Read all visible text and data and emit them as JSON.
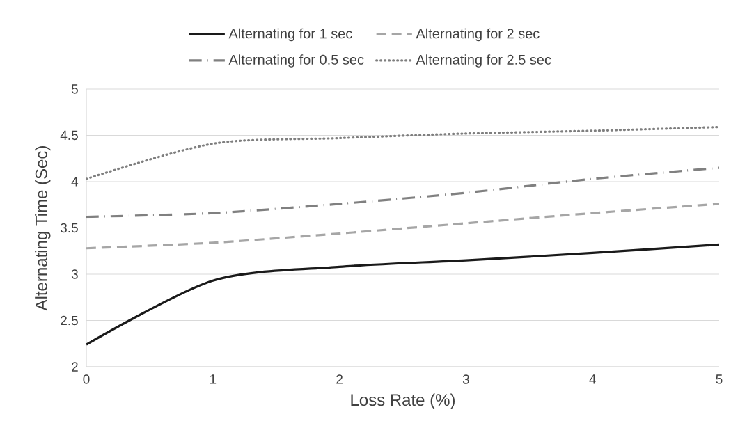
{
  "chart_data": {
    "type": "line",
    "xlabel": "Loss Rate (%)",
    "ylabel": "Alternating Time (Sec)",
    "x": [
      0,
      1,
      2,
      3,
      4,
      5
    ],
    "series": [
      {
        "name": "Alternating for 1 sec",
        "color": "#1a1a1a",
        "line_style": "solid",
        "values": [
          2.24,
          2.93,
          3.08,
          3.15,
          3.23,
          3.32
        ]
      },
      {
        "name": "Alternating for 2 sec",
        "color": "#a6a6a6",
        "line_style": "dashed",
        "values": [
          3.28,
          3.34,
          3.44,
          3.55,
          3.66,
          3.76
        ]
      },
      {
        "name": "Alternating for 0.5 sec",
        "color": "#808080",
        "line_style": "dashdot",
        "values": [
          3.62,
          3.66,
          3.76,
          3.88,
          4.03,
          4.15
        ]
      },
      {
        "name": "Alternating for 2.5 sec",
        "color": "#7f7f7f",
        "line_style": "dotted",
        "values": [
          4.03,
          4.41,
          4.47,
          4.52,
          4.55,
          4.59
        ]
      }
    ],
    "xlim": [
      0,
      5
    ],
    "xticks": [
      0,
      1,
      2,
      3,
      4,
      5
    ],
    "ylim": [
      2,
      5
    ],
    "yticks": [
      2,
      2.5,
      3,
      3.5,
      4,
      4.5,
      5
    ],
    "grid": "y",
    "legend": "top",
    "marker": "none"
  }
}
